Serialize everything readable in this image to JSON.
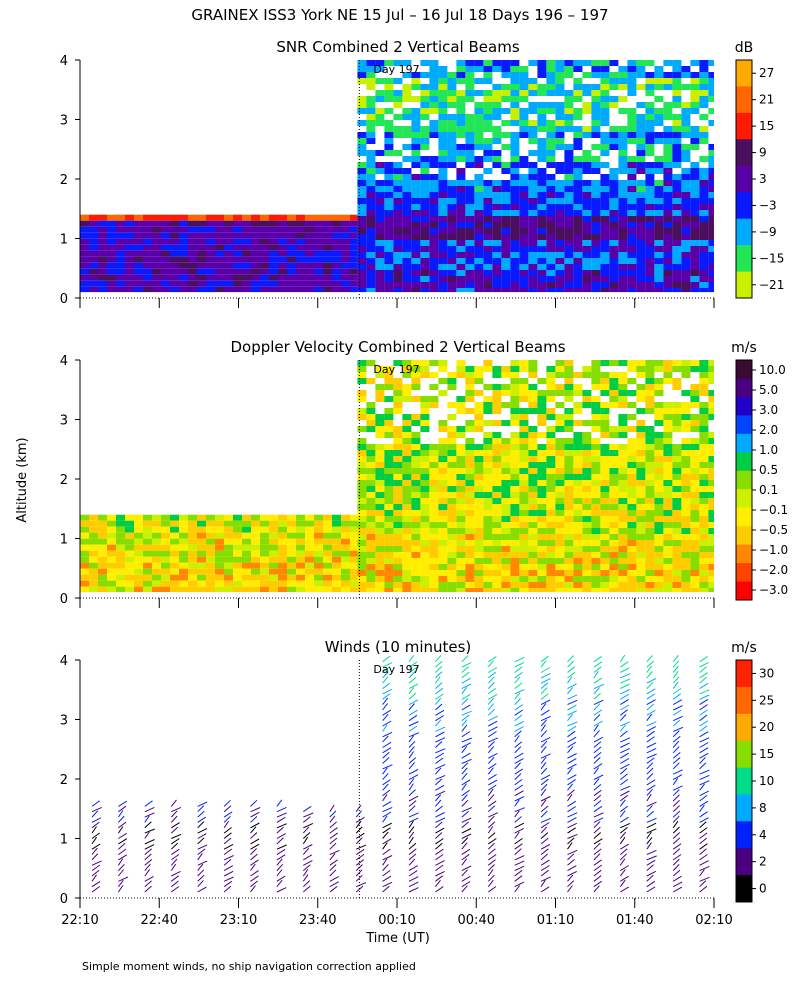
{
  "title": "GRAINEX ISS3 York NE  15 Jul – 16 Jul 18 Days 196 – 197",
  "y_axis_label": "Altitude (km)",
  "x_axis_label": "Time (UT)",
  "footer_note": "Simple moment winds, no ship navigation correction applied",
  "day_marker_label": "Day 197",
  "x_ticks": [
    "22:10",
    "22:40",
    "23:10",
    "23:40",
    "00:10",
    "00:40",
    "01:10",
    "01:40",
    "02:10"
  ],
  "y_ticks": [
    "0",
    "1",
    "2",
    "3",
    "4"
  ],
  "colors": {
    "white_gap": "#ffffff",
    "palette": [
      "#000000",
      "#4b0082",
      "#2a00cc",
      "#0040ff",
      "#00aaff",
      "#00dd66",
      "#a0e000",
      "#e8e800",
      "#ffaa00",
      "#ff5500",
      "#ff0000"
    ]
  },
  "chart_data": [
    {
      "type": "heatmap",
      "title": "SNR Combined 2 Vertical Beams",
      "unit": "dB",
      "xlim": [
        "22:10",
        "02:10"
      ],
      "ylim": [
        0,
        4
      ],
      "ylabel": "Altitude (km)",
      "colorbar_ticks": [
        "27",
        "21",
        "15",
        "9",
        "3",
        "−3",
        "−9",
        "−15",
        "−21"
      ],
      "colorbar_colors": [
        "#ffaa00",
        "#ff6600",
        "#ff1a00",
        "#4b0f5f",
        "#5a00a8",
        "#0a1aff",
        "#00aaff",
        "#22e655",
        "#c8f000"
      ],
      "coverage": [
        {
          "x_from": "22:10",
          "x_to": "23:55",
          "alt_from_km": 0.1,
          "alt_to_km": 1.4
        },
        {
          "x_from": "23:55",
          "x_to": "02:10",
          "alt_from_km": 0.1,
          "alt_to_km": 4.0
        }
      ],
      "profile_mean_db": [
        {
          "alt_km": 0.25,
          "db": 0
        },
        {
          "alt_km": 0.75,
          "db": -3
        },
        {
          "alt_km": 1.2,
          "db": 5
        },
        {
          "alt_km": 1.6,
          "db": -4
        },
        {
          "alt_km": 2.0,
          "db": -6
        },
        {
          "alt_km": 2.5,
          "db": -10
        },
        {
          "alt_km": 3.0,
          "db": -13
        },
        {
          "alt_km": 3.5,
          "db": -15
        },
        {
          "alt_km": 3.9,
          "db": -8
        }
      ]
    },
    {
      "type": "heatmap",
      "title": "Doppler Velocity Combined 2 Vertical Beams",
      "unit": "m/s",
      "xlim": [
        "22:10",
        "02:10"
      ],
      "ylim": [
        0,
        4
      ],
      "colorbar_ticks": [
        "10.0",
        "5.0",
        "3.0",
        "2.0",
        "1.0",
        "0.5",
        "0.1",
        "−0.1",
        "−0.5",
        "−1.0",
        "−2.0",
        "−3.0"
      ],
      "colorbar_colors": [
        "#3a0a30",
        "#4b0082",
        "#2200cc",
        "#0044ff",
        "#00aaff",
        "#00cc44",
        "#88dd00",
        "#ccf000",
        "#ffee00",
        "#ffcc00",
        "#ff8800",
        "#ff4400",
        "#ff0000"
      ],
      "coverage": [
        {
          "x_from": "22:10",
          "x_to": "23:55",
          "alt_from_km": 0.1,
          "alt_to_km": 1.4
        },
        {
          "x_from": "23:55",
          "x_to": "02:10",
          "alt_from_km": 0.1,
          "alt_to_km": 4.0
        }
      ],
      "profile_mean_ms": [
        {
          "alt_km": 0.3,
          "ms": -0.5
        },
        {
          "alt_km": 0.8,
          "ms": -0.3
        },
        {
          "alt_km": 1.3,
          "ms": -0.1
        },
        {
          "alt_km": 2.0,
          "ms": 0.0
        },
        {
          "alt_km": 2.8,
          "ms": 0.1
        },
        {
          "alt_km": 3.5,
          "ms": 0.0
        }
      ]
    },
    {
      "type": "scatter",
      "title": "Winds (10 minutes)",
      "unit": "m/s",
      "xlim": [
        "22:10",
        "02:10"
      ],
      "ylim": [
        0,
        4
      ],
      "colorbar_ticks": [
        "30",
        "25",
        "20",
        "15",
        "10",
        "8",
        "4",
        "2",
        "0"
      ],
      "colorbar_colors": [
        "#ff2200",
        "#ff6600",
        "#ffaa00",
        "#88dd00",
        "#00dd88",
        "#00aaff",
        "#0022ff",
        "#4b0082",
        "#000000"
      ],
      "profile_times": [
        "22:10",
        "22:20",
        "22:30",
        "22:40",
        "22:50",
        "23:00",
        "23:10",
        "23:20",
        "23:30",
        "23:40",
        "23:50",
        "00:00",
        "00:10",
        "00:20",
        "00:30",
        "00:40",
        "00:50",
        "01:00",
        "01:10",
        "01:20",
        "01:30",
        "01:40",
        "01:50",
        "02:00"
      ],
      "profile_top_km": [
        1.6,
        1.6,
        1.6,
        1.6,
        1.6,
        1.6,
        1.6,
        1.6,
        1.5,
        1.5,
        1.5,
        4.0,
        4.0,
        4.0,
        4.0,
        4.0,
        4.0,
        4.0,
        4.0,
        4.0,
        4.0,
        4.0,
        4.0,
        4.0
      ],
      "speed_by_altitude_ms": [
        {
          "alt_km": 0.5,
          "speed": 3
        },
        {
          "alt_km": 1.0,
          "speed": 2
        },
        {
          "alt_km": 1.5,
          "speed": 4
        },
        {
          "alt_km": 2.0,
          "speed": 6
        },
        {
          "alt_km": 2.5,
          "speed": 7
        },
        {
          "alt_km": 3.0,
          "speed": 8
        },
        {
          "alt_km": 3.5,
          "speed": 10
        },
        {
          "alt_km": 4.0,
          "speed": 12
        }
      ]
    }
  ]
}
